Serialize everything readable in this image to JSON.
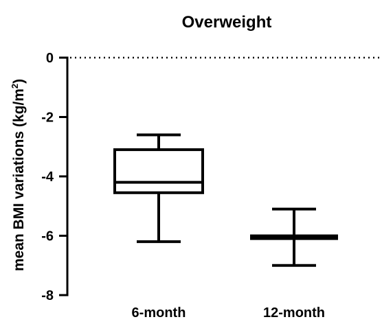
{
  "chart_data": {
    "type": "box",
    "title": "Overweight",
    "ylabel": "mean BMI variations (kg/m²)",
    "ylabel_main": "mean BMI variations (kg/m",
    "ylabel_sup": "2",
    "ylabel_close": ")",
    "xlabel": "",
    "ylim": [
      -8,
      0
    ],
    "yticks": [
      {
        "value": 0,
        "label": "0"
      },
      {
        "value": -2,
        "label": "-2"
      },
      {
        "value": -4,
        "label": "-4"
      },
      {
        "value": -6,
        "label": "-6"
      },
      {
        "value": -8,
        "label": "-8"
      }
    ],
    "categories": [
      "6-month",
      "12-month"
    ],
    "boxes": [
      {
        "category": "6-month",
        "min": -6.2,
        "q1": -4.55,
        "median": -4.2,
        "q3": -3.1,
        "max": -2.6
      },
      {
        "category": "12-month",
        "min": -7.0,
        "q1": -6.05,
        "median": -6.05,
        "q3": -6.05,
        "max": -5.1
      }
    ],
    "reference_line": {
      "value": 0,
      "style": "dotted"
    },
    "grid": false,
    "color": "#000000"
  }
}
